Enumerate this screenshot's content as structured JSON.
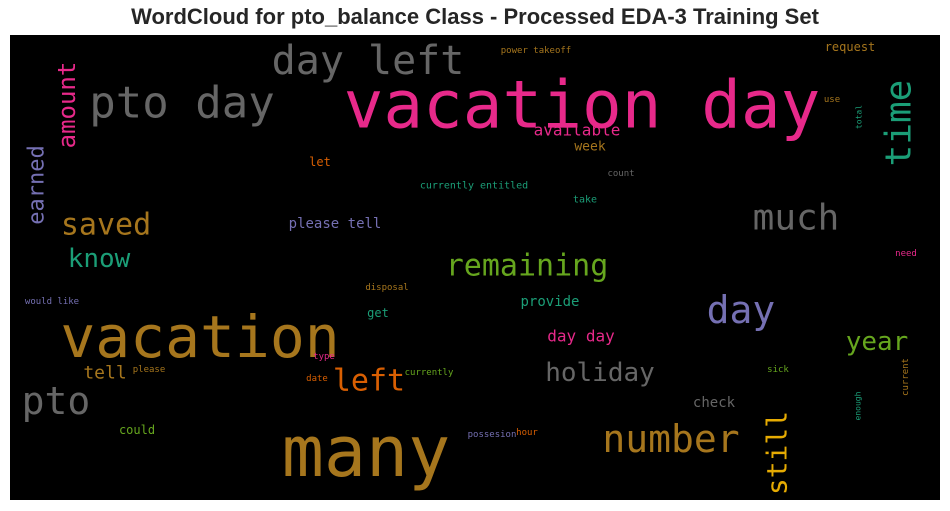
{
  "chart_data": {
    "type": "wordcloud",
    "title": "WordCloud for pto_balance Class - Processed EDA-3 Training Set",
    "words": [
      {
        "text": "vacation day",
        "color": "#e7298a"
      },
      {
        "text": "many",
        "color": "#a6761d"
      },
      {
        "text": "vacation",
        "color": "#a6761d"
      },
      {
        "text": "pto day",
        "color": "#666666"
      },
      {
        "text": "day left",
        "color": "#666666"
      },
      {
        "text": "time",
        "color": "#1b9e77"
      },
      {
        "text": "pto",
        "color": "#666666"
      },
      {
        "text": "number",
        "color": "#a6761d"
      },
      {
        "text": "day",
        "color": "#7570b3"
      },
      {
        "text": "much",
        "color": "#666666"
      },
      {
        "text": "remaining",
        "color": "#66a61e"
      },
      {
        "text": "left",
        "color": "#d95f02"
      },
      {
        "text": "holiday",
        "color": "#666666"
      },
      {
        "text": "saved",
        "color": "#a6761d"
      },
      {
        "text": "still",
        "color": "#e6ab02"
      },
      {
        "text": "year",
        "color": "#66a61e"
      },
      {
        "text": "amount",
        "color": "#e7298a"
      },
      {
        "text": "earned",
        "color": "#7570b3"
      },
      {
        "text": "know",
        "color": "#1b9e77"
      },
      {
        "text": "available",
        "color": "#e7298a"
      },
      {
        "text": "tell",
        "color": "#a6761d"
      },
      {
        "text": "day day",
        "color": "#e7298a"
      },
      {
        "text": "please tell",
        "color": "#7570b3"
      },
      {
        "text": "provide",
        "color": "#1b9e77"
      },
      {
        "text": "check",
        "color": "#666666"
      },
      {
        "text": "week",
        "color": "#a6761d"
      },
      {
        "text": "request",
        "color": "#a6761d"
      },
      {
        "text": "could",
        "color": "#66a61e"
      },
      {
        "text": "let",
        "color": "#d95f02"
      },
      {
        "text": "get",
        "color": "#1b9e77"
      },
      {
        "text": "currently entitled",
        "color": "#1b9e77"
      },
      {
        "text": "count",
        "color": "#666666"
      },
      {
        "text": "take",
        "color": "#1b9e77"
      },
      {
        "text": "power takeoff",
        "color": "#a6761d"
      },
      {
        "text": "use",
        "color": "#a6761d"
      },
      {
        "text": "total",
        "color": "#1b9e77"
      },
      {
        "text": "need",
        "color": "#e7298a"
      },
      {
        "text": "disposal",
        "color": "#a6761d"
      },
      {
        "text": "would like",
        "color": "#7570b3"
      },
      {
        "text": "type",
        "color": "#e7298a"
      },
      {
        "text": "please",
        "color": "#a6761d"
      },
      {
        "text": "date",
        "color": "#d95f02"
      },
      {
        "text": "currently",
        "color": "#66a61e"
      },
      {
        "text": "sick",
        "color": "#66a61e"
      },
      {
        "text": "current",
        "color": "#a6761d"
      },
      {
        "text": "enough",
        "color": "#1b9e77"
      },
      {
        "text": "possesion",
        "color": "#7570b3"
      },
      {
        "text": "hour",
        "color": "#d95f02"
      }
    ]
  }
}
